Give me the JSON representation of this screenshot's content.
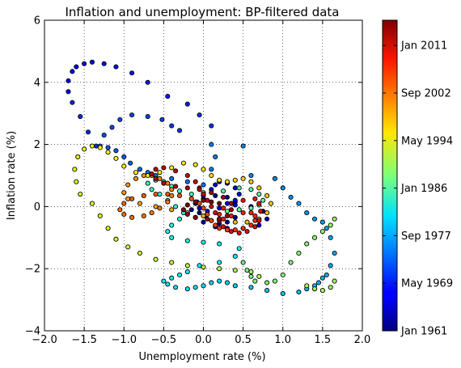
{
  "chart_data": {
    "type": "scatter",
    "title": "Inflation and unemployment: BP-filtered data",
    "xlabel": "Unemployment rate (%)",
    "ylabel": "Inflation rate (%)",
    "xlim": [
      -2.0,
      2.0
    ],
    "ylim": [
      -4,
      6
    ],
    "xticks": [
      "−2.0",
      "−1.5",
      "−1.0",
      "−0.5",
      "0.0",
      "0.5",
      "1.0",
      "1.5",
      "2.0"
    ],
    "yticks": [
      "−4",
      "−2",
      "0",
      "2",
      "4",
      "6"
    ],
    "grid": true,
    "colorbar": {
      "labels": [
        "Jan 1961",
        "May 1969",
        "Sep 1977",
        "Jan 1986",
        "May 1994",
        "Sep 2002",
        "Jan 2011"
      ],
      "colormap": "jet"
    },
    "series": [
      {
        "color_scale": "time (Jan 1961 → 2014), jet colormap",
        "points": [
          [
            -0.05,
            -0.2
          ],
          [
            0.02,
            -0.3
          ],
          [
            0.1,
            -0.45
          ],
          [
            0.2,
            -0.55
          ],
          [
            0.3,
            -0.5
          ],
          [
            0.4,
            -0.35
          ],
          [
            0.45,
            -0.1
          ],
          [
            0.4,
            0.15
          ],
          [
            0.3,
            0.3
          ],
          [
            0.15,
            0.35
          ],
          [
            0.0,
            0.25
          ],
          [
            -0.1,
            0.1
          ],
          [
            -0.15,
            -0.1
          ],
          [
            -0.1,
            -0.35
          ],
          [
            0.0,
            -0.5
          ],
          [
            0.15,
            -0.65
          ],
          [
            0.3,
            -0.7
          ],
          [
            0.5,
            -0.7
          ],
          [
            0.7,
            -0.6
          ],
          [
            0.8,
            -0.4
          ],
          [
            0.75,
            -0.15
          ],
          [
            0.6,
            0.0
          ],
          [
            0.4,
            0.05
          ],
          [
            0.2,
            -0.05
          ],
          [
            0.05,
            -0.15
          ],
          [
            -0.05,
            -0.05
          ],
          [
            -0.08,
            0.15
          ],
          [
            0.0,
            0.35
          ],
          [
            0.1,
            0.55
          ],
          [
            0.15,
            0.7
          ],
          [
            0.2,
            0.8
          ],
          [
            0.3,
            0.75
          ],
          [
            0.4,
            0.6
          ],
          [
            0.45,
            0.4
          ],
          [
            0.4,
            0.2
          ],
          [
            0.3,
            0.1
          ],
          [
            -1.7,
            3.7
          ],
          [
            -1.7,
            4.05
          ],
          [
            -1.65,
            4.35
          ],
          [
            -1.6,
            4.5
          ],
          [
            -1.5,
            4.6
          ],
          [
            -1.4,
            4.65
          ],
          [
            -1.25,
            4.6
          ],
          [
            -1.1,
            4.5
          ],
          [
            -0.9,
            4.3
          ],
          [
            -0.7,
            4.0
          ],
          [
            -0.45,
            3.55
          ],
          [
            -0.2,
            3.3
          ],
          [
            -1.65,
            3.35
          ],
          [
            -1.55,
            2.9
          ],
          [
            -1.45,
            2.4
          ],
          [
            -1.35,
            1.95
          ],
          [
            -0.05,
            2.95
          ],
          [
            0.1,
            2.6
          ],
          [
            -0.3,
            2.45
          ],
          [
            -0.4,
            2.6
          ],
          [
            -0.52,
            2.8
          ],
          [
            -0.7,
            2.9
          ],
          [
            -0.9,
            2.95
          ],
          [
            -1.05,
            2.8
          ],
          [
            -1.15,
            2.55
          ],
          [
            -1.25,
            2.3
          ],
          [
            -1.3,
            1.95
          ],
          [
            -1.2,
            1.9
          ],
          [
            -1.1,
            1.8
          ],
          [
            -1.0,
            1.6
          ],
          [
            -0.92,
            1.4
          ],
          [
            -0.8,
            1.2
          ],
          [
            -0.7,
            1.1
          ],
          [
            -0.6,
            1.0
          ],
          [
            -0.4,
            0.9
          ],
          [
            -0.2,
            0.8
          ],
          [
            0.0,
            0.7
          ],
          [
            0.1,
            1.2
          ],
          [
            0.15,
            1.6
          ],
          [
            0.1,
            2.0
          ],
          [
            0.5,
            1.95
          ],
          [
            0.6,
            1.0
          ],
          [
            0.9,
            0.9
          ],
          [
            1.0,
            0.6
          ],
          [
            1.1,
            0.3
          ],
          [
            1.2,
            0.1
          ],
          [
            1.3,
            -0.2
          ],
          [
            1.4,
            -0.4
          ],
          [
            1.5,
            -0.5
          ],
          [
            1.55,
            -0.7
          ],
          [
            1.6,
            -1.0
          ],
          [
            1.65,
            -1.5
          ],
          [
            1.6,
            -1.9
          ],
          [
            1.55,
            -2.2
          ],
          [
            1.5,
            -2.3
          ],
          [
            1.45,
            -2.45
          ],
          [
            1.4,
            -2.55
          ],
          [
            1.3,
            -2.65
          ],
          [
            1.2,
            -2.75
          ],
          [
            1.0,
            -2.8
          ],
          [
            0.8,
            -2.7
          ],
          [
            0.6,
            -2.6
          ],
          [
            0.4,
            -2.55
          ],
          [
            0.3,
            -2.45
          ],
          [
            0.2,
            -2.4
          ],
          [
            0.1,
            -2.45
          ],
          [
            0.0,
            -2.55
          ],
          [
            -0.1,
            -2.6
          ],
          [
            -0.2,
            -2.65
          ],
          [
            -0.35,
            -2.6
          ],
          [
            -0.45,
            -2.5
          ],
          [
            -0.5,
            -2.4
          ],
          [
            -0.4,
            -2.3
          ],
          [
            -0.3,
            -2.2
          ],
          [
            -0.2,
            -2.1
          ],
          [
            -0.05,
            -1.9
          ],
          [
            0.2,
            -1.8
          ],
          [
            0.4,
            -1.6
          ],
          [
            0.45,
            -1.35
          ],
          [
            0.2,
            -1.2
          ],
          [
            0.0,
            -1.15
          ],
          [
            -0.2,
            -1.1
          ],
          [
            -0.4,
            -1.0
          ],
          [
            -0.45,
            -0.8
          ],
          [
            -0.4,
            -0.6
          ],
          [
            -0.3,
            -0.4
          ],
          [
            -0.25,
            -0.2
          ],
          [
            -0.35,
            0.0
          ],
          [
            -0.45,
            0.2
          ],
          [
            -0.55,
            0.4
          ],
          [
            -0.65,
            0.55
          ],
          [
            -0.7,
            0.75
          ],
          [
            -0.6,
            0.85
          ],
          [
            -0.5,
            0.8
          ],
          [
            -0.4,
            0.65
          ],
          [
            -0.3,
            0.5
          ],
          [
            -0.15,
            0.4
          ],
          [
            0.0,
            0.45
          ],
          [
            0.25,
            0.5
          ],
          [
            0.45,
            0.6
          ],
          [
            0.6,
            0.55
          ],
          [
            0.7,
            0.4
          ],
          [
            0.75,
            0.2
          ],
          [
            0.7,
            0.05
          ],
          [
            0.6,
            -0.05
          ],
          [
            0.45,
            -0.1
          ],
          [
            0.3,
            -0.15
          ],
          [
            0.5,
            -1.8
          ],
          [
            0.55,
            -2.05
          ],
          [
            0.6,
            -2.25
          ],
          [
            0.65,
            -2.4
          ],
          [
            0.8,
            -2.45
          ],
          [
            0.9,
            -2.4
          ],
          [
            1.0,
            -2.2
          ],
          [
            1.1,
            -1.8
          ],
          [
            1.2,
            -1.5
          ],
          [
            1.3,
            -1.2
          ],
          [
            1.4,
            -1.0
          ],
          [
            1.5,
            -0.8
          ],
          [
            1.6,
            -0.6
          ],
          [
            1.65,
            -0.4
          ],
          [
            1.65,
            -2.4
          ],
          [
            1.6,
            -2.6
          ],
          [
            1.5,
            -2.7
          ],
          [
            1.4,
            -2.65
          ],
          [
            1.3,
            -2.55
          ],
          [
            0.7,
            -2.25
          ],
          [
            0.6,
            -2.1
          ],
          [
            0.4,
            -2.05
          ],
          [
            0.2,
            -2.0
          ],
          [
            0.0,
            -1.95
          ],
          [
            -0.2,
            -1.9
          ],
          [
            -0.4,
            -1.8
          ],
          [
            -0.6,
            -1.7
          ],
          [
            -0.8,
            -1.5
          ],
          [
            -0.95,
            -1.3
          ],
          [
            -1.1,
            -1.05
          ],
          [
            -1.2,
            -0.7
          ],
          [
            -1.3,
            -0.3
          ],
          [
            -1.4,
            0.1
          ],
          [
            -1.55,
            0.4
          ],
          [
            -1.6,
            0.8
          ],
          [
            -1.62,
            1.2
          ],
          [
            -1.58,
            1.6
          ],
          [
            -1.5,
            1.85
          ],
          [
            -1.4,
            1.95
          ],
          [
            -1.3,
            1.9
          ],
          [
            -1.2,
            1.75
          ],
          [
            -1.1,
            1.55
          ],
          [
            -1.0,
            1.3
          ],
          [
            -0.85,
            1.1
          ],
          [
            -0.7,
            1.0
          ],
          [
            -0.55,
            1.1
          ],
          [
            -0.4,
            1.25
          ],
          [
            -0.25,
            1.4
          ],
          [
            -0.1,
            1.35
          ],
          [
            0.0,
            1.2
          ],
          [
            0.1,
            1.0
          ],
          [
            0.2,
            0.85
          ],
          [
            0.3,
            0.8
          ],
          [
            0.4,
            0.85
          ],
          [
            0.5,
            0.9
          ],
          [
            0.6,
            0.8
          ],
          [
            0.7,
            0.6
          ],
          [
            0.8,
            0.35
          ],
          [
            0.85,
            0.1
          ],
          [
            0.8,
            -0.2
          ],
          [
            0.7,
            -0.4
          ],
          [
            0.55,
            -0.5
          ],
          [
            0.4,
            -0.5
          ],
          [
            0.2,
            -0.4
          ],
          [
            0.0,
            -0.3
          ],
          [
            -0.2,
            -0.2
          ],
          [
            -0.4,
            -0.1
          ],
          [
            -0.6,
            0.0
          ],
          [
            -0.8,
            0.1
          ],
          [
            -0.95,
            0.25
          ],
          [
            -1.0,
            0.45
          ],
          [
            -0.95,
            0.7
          ],
          [
            -0.85,
            0.9
          ],
          [
            -0.75,
            1.0
          ],
          [
            -0.65,
            1.0
          ],
          [
            -0.55,
            0.9
          ],
          [
            -0.45,
            0.75
          ],
          [
            -0.4,
            0.55
          ],
          [
            -0.4,
            0.35
          ],
          [
            -0.45,
            0.15
          ],
          [
            -0.55,
            -0.05
          ],
          [
            -0.65,
            -0.2
          ],
          [
            -0.75,
            -0.3
          ],
          [
            -0.9,
            -0.35
          ],
          [
            -1.0,
            -0.25
          ],
          [
            -1.05,
            -0.1
          ],
          [
            -1.0,
            0.1
          ],
          [
            -0.9,
            0.25
          ],
          [
            -0.75,
            0.35
          ],
          [
            -0.6,
            0.4
          ],
          [
            -0.45,
            0.4
          ],
          [
            -0.3,
            0.35
          ],
          [
            -0.15,
            0.25
          ],
          [
            -0.05,
            0.1
          ],
          [
            0.0,
            -0.05
          ],
          [
            0.05,
            -0.25
          ],
          [
            0.1,
            -0.45
          ],
          [
            0.15,
            -0.6
          ],
          [
            0.2,
            -0.7
          ],
          [
            0.3,
            -0.75
          ],
          [
            0.4,
            -0.75
          ],
          [
            0.5,
            -0.7
          ],
          [
            0.6,
            -0.6
          ],
          [
            0.65,
            -0.45
          ],
          [
            0.65,
            -0.3
          ],
          [
            0.6,
            -0.2
          ],
          [
            0.5,
            -0.2
          ],
          [
            0.35,
            -0.3
          ],
          [
            0.25,
            -0.4
          ],
          [
            0.2,
            -0.25
          ],
          [
            0.25,
            -0.05
          ],
          [
            0.35,
            0.1
          ],
          [
            0.5,
            0.2
          ],
          [
            0.65,
            0.25
          ],
          [
            0.7,
            0.1
          ],
          [
            0.72,
            -0.15
          ],
          [
            0.7,
            -0.45
          ],
          [
            0.65,
            -0.65
          ],
          [
            0.55,
            -0.8
          ],
          [
            0.45,
            -0.85
          ],
          [
            0.35,
            -0.8
          ],
          [
            0.25,
            -0.65
          ],
          [
            0.2,
            -0.45
          ],
          [
            0.15,
            -0.2
          ],
          [
            0.1,
            0.0
          ],
          [
            0.05,
            0.2
          ],
          [
            0.0,
            0.4
          ],
          [
            -0.05,
            0.6
          ],
          [
            -0.1,
            0.8
          ],
          [
            -0.2,
            1.0
          ],
          [
            -0.35,
            1.15
          ],
          [
            -0.5,
            1.25
          ],
          [
            -0.6,
            1.2
          ],
          [
            -0.65,
            1.05
          ],
          [
            -0.6,
            0.9
          ],
          [
            -0.5,
            0.75
          ],
          [
            -0.35,
            0.65
          ],
          [
            -0.2,
            0.6
          ],
          [
            -0.05,
            0.55
          ],
          [
            0.1,
            0.45
          ],
          [
            0.25,
            0.3
          ],
          [
            0.35,
            0.1
          ],
          [
            0.35,
            -0.1
          ],
          [
            0.3,
            -0.3
          ],
          [
            0.2,
            -0.4
          ],
          [
            0.05,
            -0.4
          ],
          [
            -0.1,
            -0.35
          ],
          [
            -0.2,
            -0.25
          ],
          [
            -0.25,
            -0.1
          ],
          [
            -0.2,
            0.05
          ],
          [
            -0.1,
            0.15
          ],
          [
            0.0,
            0.2
          ],
          [
            0.1,
            0.15
          ],
          [
            0.2,
            0.1
          ]
        ]
      }
    ]
  }
}
